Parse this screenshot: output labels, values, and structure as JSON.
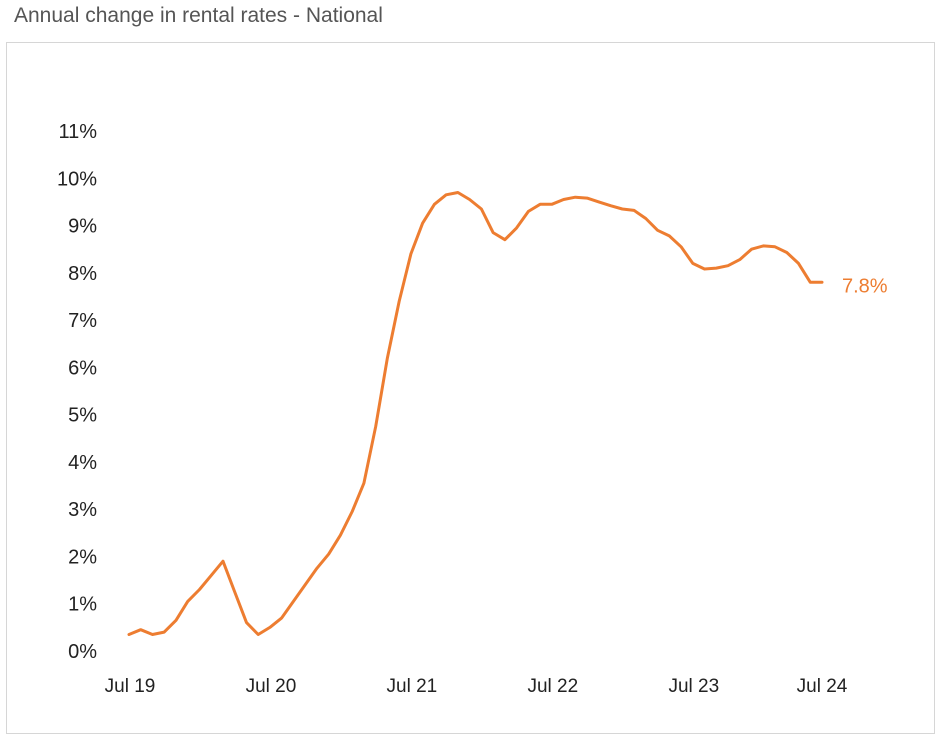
{
  "title": "Annual change in rental rates - National",
  "colors": {
    "line": "#ed7d31",
    "text": "#222222",
    "title": "#555555",
    "border": "#d6d6d6"
  },
  "chart_data": {
    "type": "line",
    "title": "Annual change in rental rates - National",
    "xlabel": "",
    "ylabel": "",
    "ylim": [
      0,
      11
    ],
    "y_ticks": [
      "0%",
      "1%",
      "2%",
      "3%",
      "4%",
      "5%",
      "6%",
      "7%",
      "8%",
      "9%",
      "10%",
      "11%"
    ],
    "x_ticks": [
      "Jul 19",
      "Jul 20",
      "Jul 21",
      "Jul 22",
      "Jul 23",
      "Jul 24"
    ],
    "grid": false,
    "end_label": "7.8%",
    "series": [
      {
        "x": [
          "Jul 19",
          "Aug 19",
          "Sep 19",
          "Oct 19",
          "Nov 19",
          "Dec 19",
          "Jan 20",
          "Feb 20",
          "Mar 20",
          "Apr 20",
          "May 20",
          "Jun 20",
          "Jul 20",
          "Aug 20",
          "Sep 20",
          "Oct 20",
          "Nov 20",
          "Dec 20",
          "Jan 21",
          "Feb 21",
          "Mar 21",
          "Apr 21",
          "May 21",
          "Jun 21",
          "Jul 21",
          "Aug 21",
          "Sep 21",
          "Oct 21",
          "Nov 21",
          "Dec 21",
          "Jan 22",
          "Feb 22",
          "Mar 22",
          "Apr 22",
          "May 22",
          "Jun 22",
          "Jul 22",
          "Aug 22",
          "Sep 22",
          "Oct 22",
          "Nov 22",
          "Dec 22",
          "Jan 23",
          "Feb 23",
          "Mar 23",
          "Apr 23",
          "May 23",
          "Jun 23",
          "Jul 23",
          "Aug 23",
          "Sep 23",
          "Oct 23",
          "Nov 23",
          "Dec 23",
          "Jan 24",
          "Feb 24",
          "Mar 24",
          "Apr 24",
          "May 24",
          "Jun 24"
        ],
        "values": [
          0.35,
          0.45,
          0.35,
          0.4,
          0.65,
          1.05,
          1.3,
          1.6,
          1.9,
          1.25,
          0.6,
          0.35,
          0.5,
          0.7,
          1.05,
          1.4,
          1.75,
          2.05,
          2.45,
          2.95,
          3.55,
          4.75,
          6.2,
          7.4,
          8.4,
          9.05,
          9.45,
          9.65,
          9.7,
          9.55,
          9.35,
          8.85,
          8.7,
          8.95,
          9.3,
          9.45,
          9.45,
          9.55,
          9.6,
          9.58,
          9.5,
          9.42,
          9.35,
          9.32,
          9.15,
          8.9,
          8.78,
          8.55,
          8.2,
          8.08,
          8.1,
          8.15,
          8.28,
          8.5,
          8.57,
          8.55,
          8.43,
          8.2,
          7.8,
          7.8
        ]
      }
    ]
  }
}
